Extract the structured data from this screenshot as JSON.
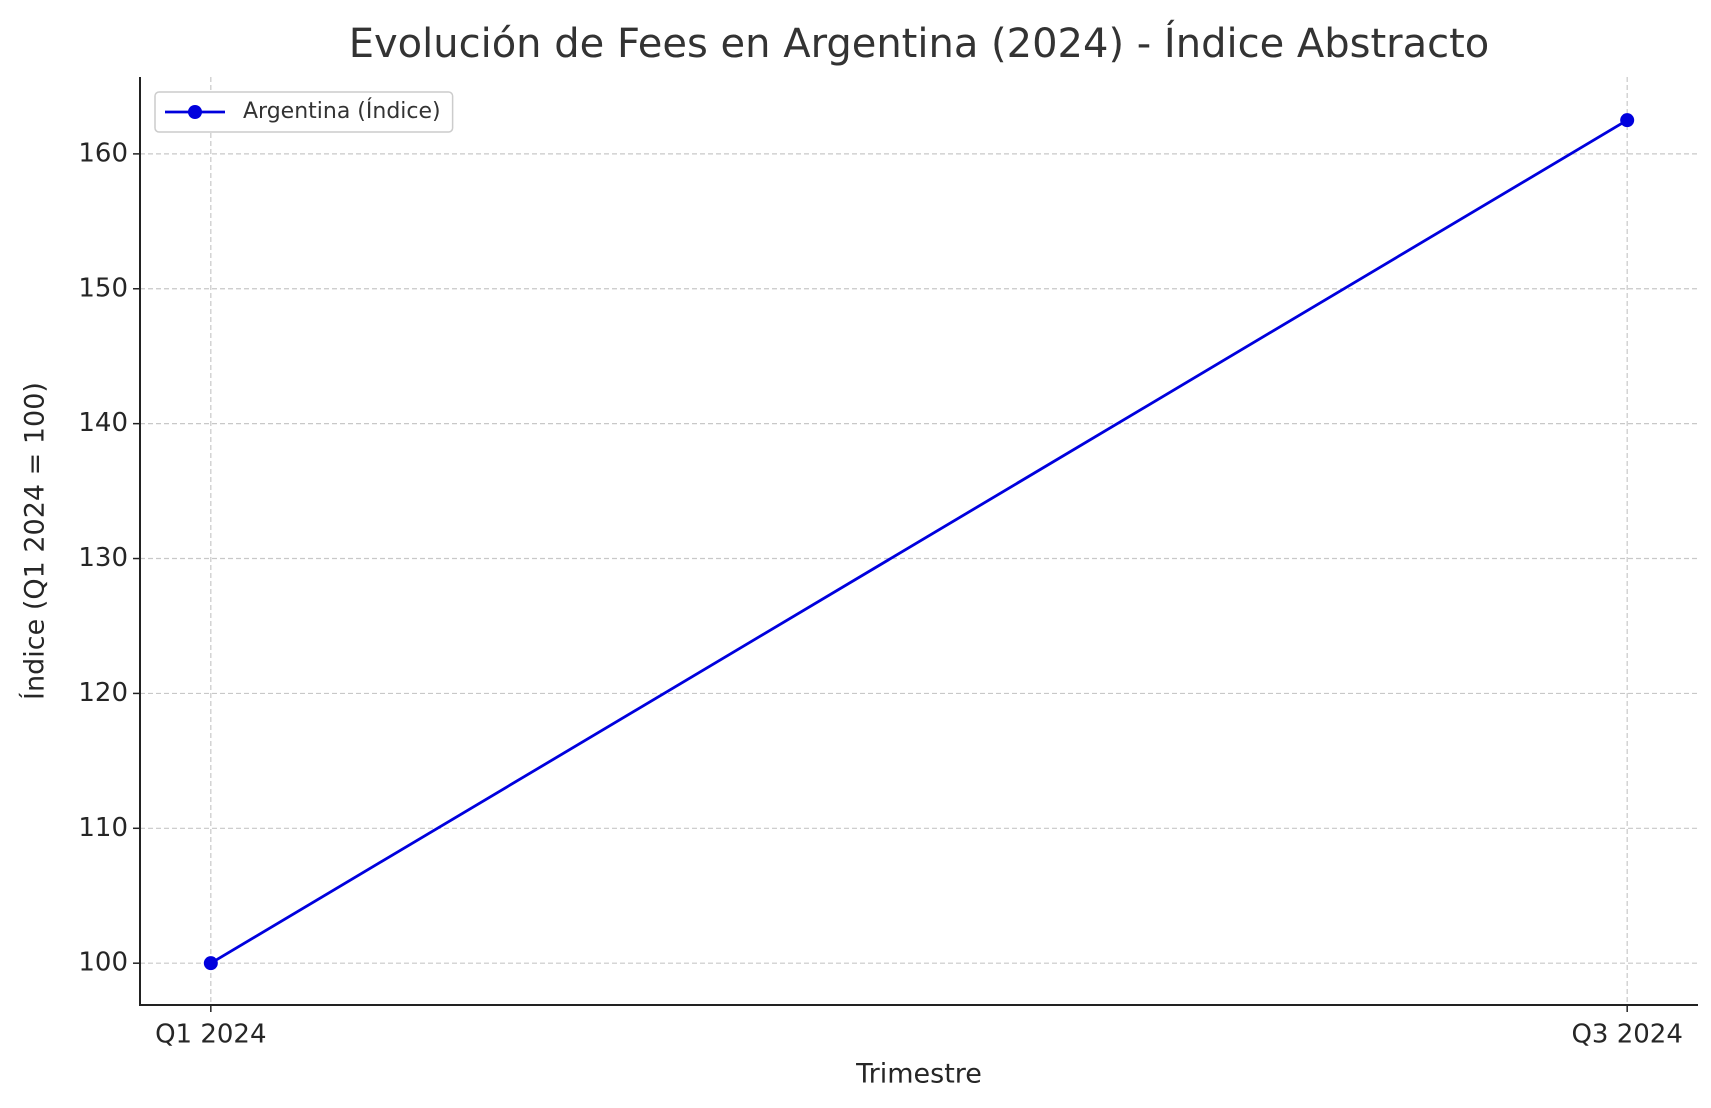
{
  "chart_data": {
    "type": "line",
    "title": "Evolución de Fees en Argentina (2024) - Índice Abstracto",
    "x_label": "Trimestre",
    "y_label": "Índice (Q1 2024 = 100)",
    "categories": [
      "Q1 2024",
      "Q3 2024"
    ],
    "series": [
      {
        "name": "Argentina (Índice)",
        "color": "#0000dd",
        "values": [
          100,
          162.5
        ]
      }
    ],
    "ylim": [
      96.9,
      165.7
    ],
    "yticks": [
      100,
      110,
      120,
      130,
      140,
      150,
      160
    ],
    "grid": true,
    "legend": "upper left"
  }
}
